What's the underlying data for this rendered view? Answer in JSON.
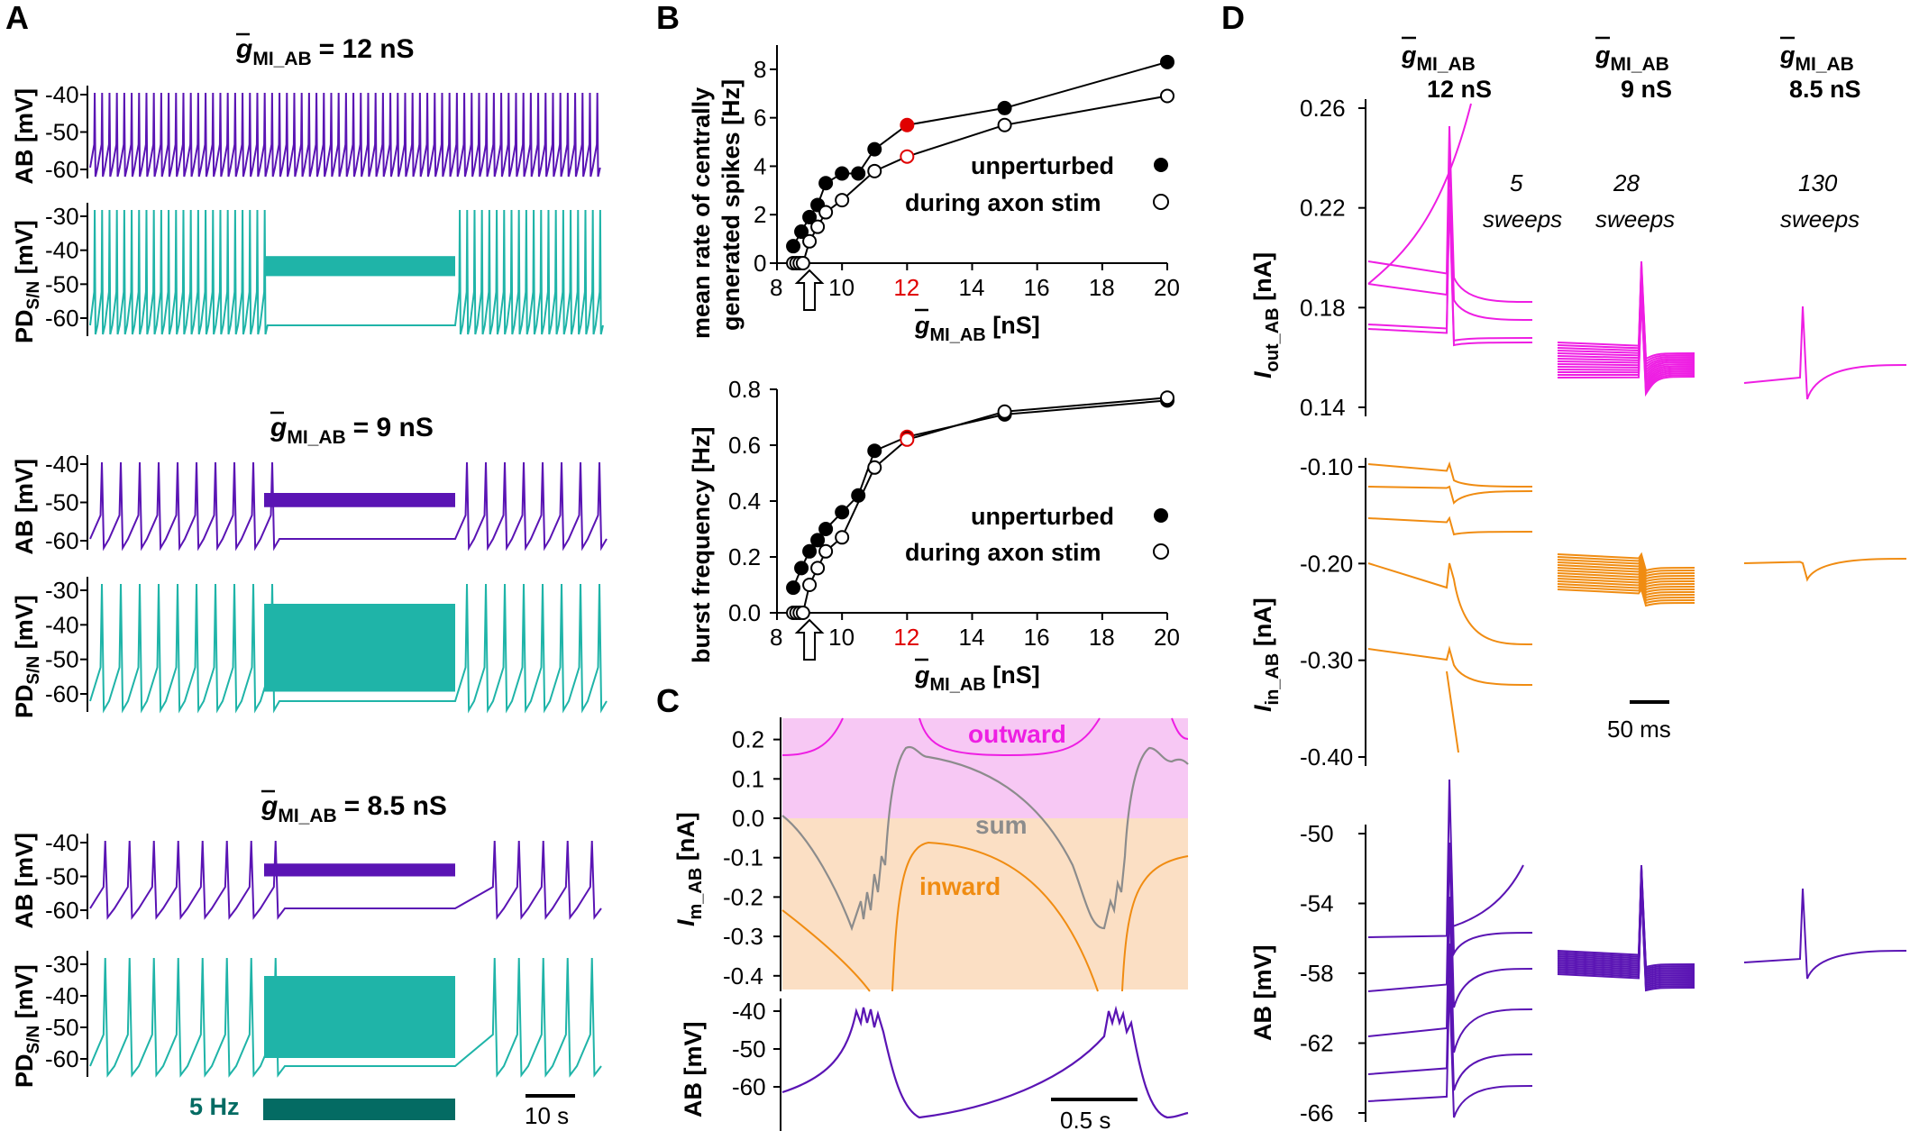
{
  "colors": {
    "ab": "#5a14b4",
    "pd": "#1fb4a8",
    "pd_bar": "#046b63",
    "out": "#ee1ee3",
    "in": "#f08c12",
    "sum": "#8c8c8c",
    "red": "#e00000",
    "out_bg": "#f7c8f4",
    "in_bg": "#fbdfc4"
  },
  "panelA": {
    "letter": "A",
    "ab_label": "AB [mV]",
    "pd_label": "PD",
    "pd_sub": "S/N",
    "pd_unit": " [mV]",
    "groups": [
      {
        "title_pre": "= 12 nS",
        "ab_ticks": [
          "-40",
          "-50",
          "-60"
        ],
        "pd_ticks": [
          "-30",
          "-40",
          "-50",
          "-60"
        ]
      },
      {
        "title_pre": "= 9 nS",
        "ab_ticks": [
          "-40",
          "-50",
          "-60"
        ],
        "pd_ticks": [
          "-30",
          "-40",
          "-50",
          "-60"
        ]
      },
      {
        "title_pre": "= 8.5 nS",
        "ab_ticks": [
          "-40",
          "-50",
          "-60"
        ],
        "pd_ticks": [
          "-30",
          "-40",
          "-50",
          "-60"
        ]
      }
    ],
    "g_symbol": "g",
    "g_sub": "MI_AB",
    "stim_label": "5 Hz",
    "scale_label": "10 s"
  },
  "panelB": {
    "letter": "B",
    "top": {
      "ylabel1": "mean rate of centrally",
      "ylabel2": "generated spikes [Hz]",
      "yticks": [
        "0",
        "2",
        "4",
        "6",
        "8"
      ],
      "chart_data": {
        "type": "line",
        "xlabel": "g MI_AB [nS]",
        "ylabel": "mean rate of centrally generated spikes [Hz]",
        "xlim": [
          8,
          20
        ],
        "ylim": [
          0,
          9
        ],
        "series": [
          {
            "name": "unperturbed",
            "x": [
              8.5,
              8.75,
              9,
              9.25,
              9.5,
              10,
              10.5,
              11,
              12,
              15,
              20
            ],
            "y": [
              0.7,
              1.3,
              1.9,
              2.4,
              3.3,
              3.7,
              3.7,
              4.7,
              5.7,
              6.4,
              8.3
            ]
          },
          {
            "name": "during axon stim",
            "x": [
              8.5,
              8.6,
              8.7,
              8.8,
              9,
              9.25,
              9.5,
              10,
              11,
              12,
              15,
              20
            ],
            "y": [
              0,
              0,
              0,
              0,
              0.9,
              1.5,
              2.1,
              2.6,
              3.8,
              4.4,
              5.7,
              6.9
            ]
          }
        ]
      }
    },
    "bottom": {
      "ylabel1": "burst frequency [Hz]",
      "yticks": [
        "0.0",
        "0.2",
        "0.4",
        "0.6",
        "0.8"
      ],
      "chart_data": {
        "type": "line",
        "xlabel": "g MI_AB [nS]",
        "ylabel": "burst frequency [Hz]",
        "xlim": [
          8,
          20
        ],
        "ylim": [
          0,
          0.8
        ],
        "series": [
          {
            "name": "unperturbed",
            "x": [
              8.5,
              8.75,
              9,
              9.25,
              9.5,
              10,
              10.5,
              11,
              12,
              15,
              20
            ],
            "y": [
              0.09,
              0.16,
              0.22,
              0.26,
              0.3,
              0.36,
              0.42,
              0.58,
              0.63,
              0.71,
              0.76
            ]
          },
          {
            "name": "during axon stim",
            "x": [
              8.5,
              8.6,
              8.7,
              8.8,
              9,
              9.25,
              9.5,
              10,
              11,
              12,
              15,
              20
            ],
            "y": [
              0,
              0,
              0,
              0,
              0.1,
              0.16,
              0.22,
              0.27,
              0.52,
              0.62,
              0.72,
              0.77
            ]
          }
        ]
      }
    },
    "xticks": [
      "8",
      "10",
      "12",
      "14",
      "16",
      "18",
      "20"
    ],
    "highlight_tick": "12",
    "xlabel_sub": "MI_AB",
    "xlabel_unit": " [nS]",
    "legend_unperturbed": "unperturbed",
    "legend_stim": "during axon stim"
  },
  "panelC": {
    "letter": "C",
    "ylabel_I": "I",
    "ylabel_I_sub": "m_AB",
    "ylabel_I_unit": " [nA]",
    "yticks_I": [
      "0.2",
      "0.1",
      "0.0",
      "-0.1",
      "-0.2",
      "-0.3",
      "-0.4"
    ],
    "ylabel_V": "AB [mV]",
    "yticks_V": [
      "-40",
      "-50",
      "-60"
    ],
    "outward": "outward",
    "sum": "sum",
    "inward": "inward",
    "scale_label": "0.5 s"
  },
  "panelD": {
    "letter": "D",
    "cols": [
      {
        "value": "12 nS",
        "sweeps_n": "5",
        "sweeps": "sweeps"
      },
      {
        "value": "9 nS",
        "sweeps_n": "28",
        "sweeps": "sweeps"
      },
      {
        "value": "8.5 nS",
        "sweeps_n": "130",
        "sweeps": "sweeps"
      }
    ],
    "g_symbol": "g",
    "g_sub": "MI_AB",
    "out_label_I": "I",
    "out_label_sub": "out_AB",
    "out_unit": " [nA]",
    "out_ticks": [
      "0.26",
      "0.22",
      "0.18",
      "0.14"
    ],
    "in_label_I": "I",
    "in_label_sub": "in_AB",
    "in_unit": " [nA]",
    "in_ticks": [
      "-0.10",
      "-0.20",
      "-0.30",
      "-0.40"
    ],
    "ab_label": "AB [mV]",
    "ab_ticks": [
      "-50",
      "-54",
      "-58",
      "-62",
      "-66"
    ],
    "scale_label": "50 ms"
  }
}
